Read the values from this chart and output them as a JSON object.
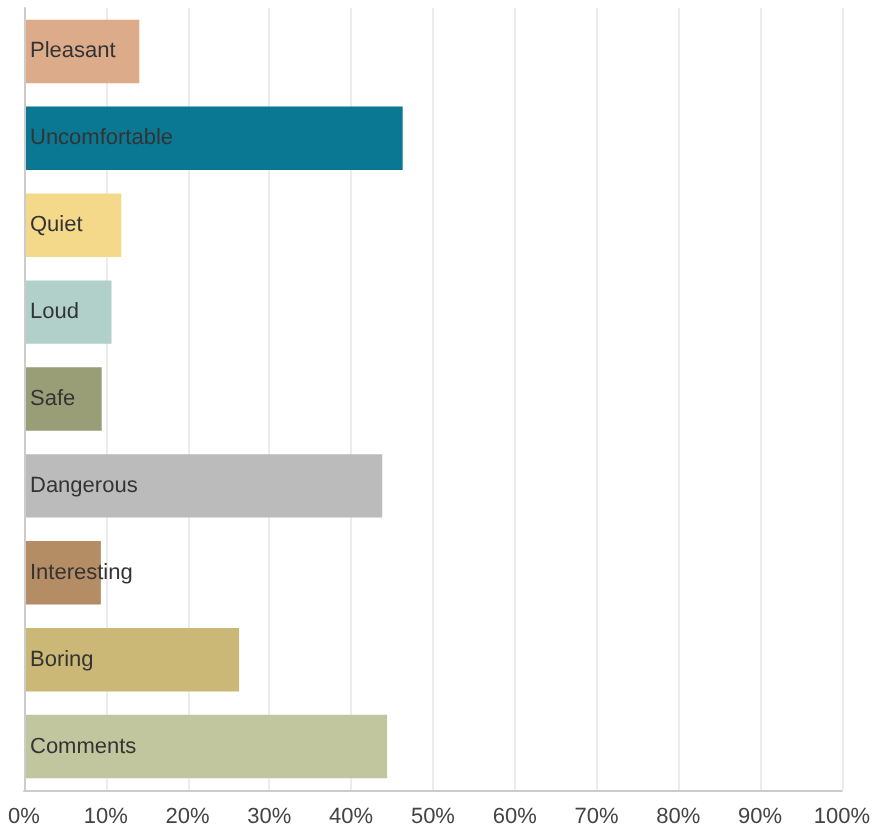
{
  "chart_data": {
    "type": "bar",
    "orientation": "horizontal",
    "categories": [
      "Pleasant",
      "Uncomfortable",
      "Quiet",
      "Loud",
      "Safe",
      "Dangerous",
      "Interesting",
      "Boring",
      "Comments"
    ],
    "values": [
      14.1,
      46.3,
      11.9,
      10.7,
      9.5,
      43.8,
      9.4,
      26.3,
      44.4
    ],
    "colors": [
      "#dcab8a",
      "#0b7893",
      "#f5d98a",
      "#b1d0c9",
      "#9a9e76",
      "#bbbbbb",
      "#b58d64",
      "#cbb877",
      "#c1c69e"
    ],
    "xlim": [
      0,
      100
    ],
    "xticks": [
      {
        "value": 0,
        "label": "0%"
      },
      {
        "value": 10,
        "label": "10%"
      },
      {
        "value": 20,
        "label": "20%"
      },
      {
        "value": 30,
        "label": "30%"
      },
      {
        "value": 40,
        "label": "40%"
      },
      {
        "value": 50,
        "label": "50%"
      },
      {
        "value": 60,
        "label": "60%"
      },
      {
        "value": 70,
        "label": "70%"
      },
      {
        "value": 80,
        "label": "80%"
      },
      {
        "value": 90,
        "label": "90%"
      },
      {
        "value": 100,
        "label": "100%"
      }
    ],
    "grid": "x"
  }
}
